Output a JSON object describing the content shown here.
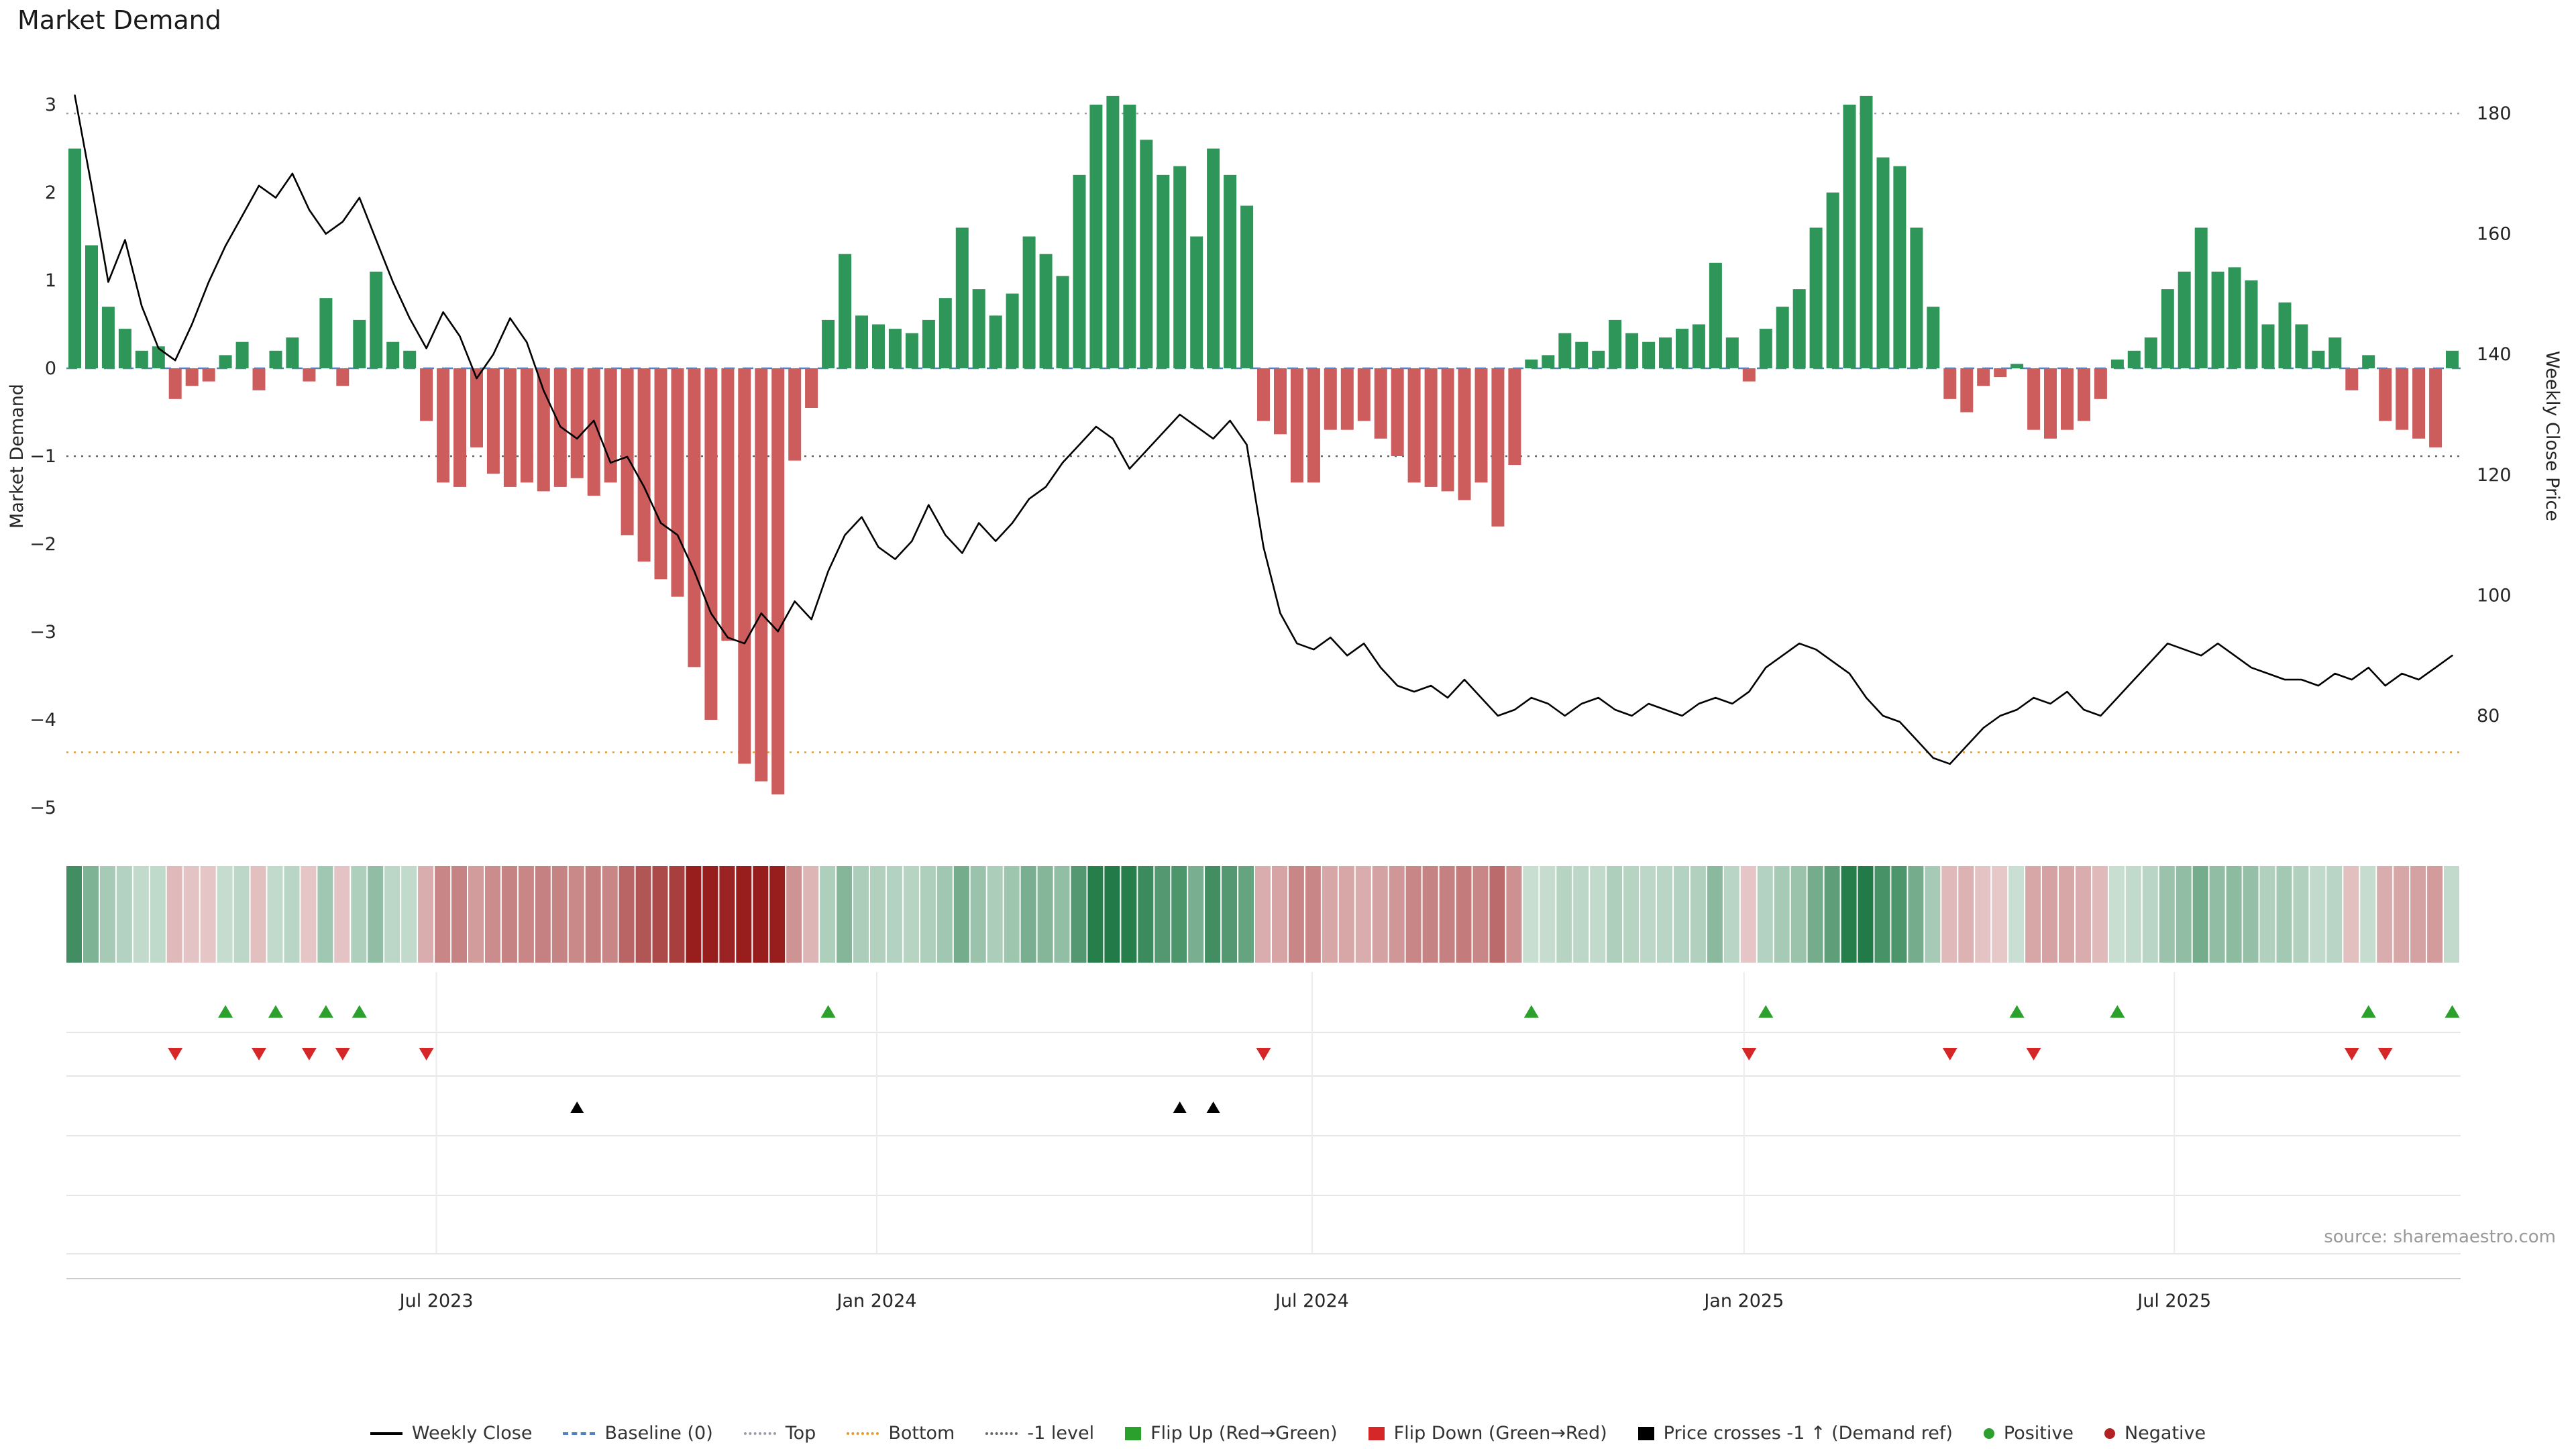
{
  "title": "Market Demand",
  "source_note": "source: sharemaestro.com",
  "axes": {
    "left_label": "Market Demand",
    "right_label": "Weekly Close Price",
    "left_ticks": [
      3,
      2,
      1,
      0,
      -1,
      -2,
      -3,
      -4,
      -5
    ],
    "right_ticks": [
      180,
      160,
      140,
      120,
      100,
      80
    ],
    "x_ticks": [
      {
        "label": "Jul 2023",
        "position": 21.6
      },
      {
        "label": "Jan 2024",
        "position": 47.9
      },
      {
        "label": "Jul 2024",
        "position": 73.9
      },
      {
        "label": "Jan 2025",
        "position": 99.7
      },
      {
        "label": "Jul 2025",
        "position": 125.4
      }
    ],
    "left_ylim": [
      -5.4,
      3.4
    ],
    "right_ylim": [
      62,
      186
    ]
  },
  "colors": {
    "positive_bar": "#2e9658",
    "negative_bar": "#cd5c5c",
    "price_line": "#000000",
    "baseline": "#4f81bd",
    "top_line": "#9999a8",
    "bottom_line": "#e0992c",
    "minus1_line": "#666666",
    "flip_up": "#2ca02c",
    "flip_down": "#d62728",
    "price_cross": "#000000",
    "positive_dot": "#2ca02c",
    "negative_dot": "#b22222",
    "heat_green": "#1b7742",
    "heat_red": "#981e1e",
    "tick_text": "#262626",
    "grid_line": "#e6e6e6",
    "axis_line": "#cccccc",
    "source_text": "#999999"
  },
  "chart_data": {
    "type": "bar+line",
    "x_unit": "week",
    "n_points": 143,
    "series": [
      {
        "name": "Market Demand",
        "type": "bar",
        "axis": "left",
        "values": [
          2.5,
          1.4,
          0.7,
          0.45,
          0.2,
          0.25,
          -0.35,
          -0.2,
          -0.15,
          0.15,
          0.3,
          -0.25,
          0.2,
          0.35,
          -0.15,
          0.8,
          -0.2,
          0.55,
          1.1,
          0.3,
          0.2,
          -0.6,
          -1.3,
          -1.35,
          -0.9,
          -1.2,
          -1.35,
          -1.3,
          -1.4,
          -1.35,
          -1.25,
          -1.45,
          -1.3,
          -1.9,
          -2.2,
          -2.4,
          -2.6,
          -3.4,
          -4.0,
          -3.1,
          -4.5,
          -4.7,
          -4.85,
          -1.05,
          -0.45,
          0.55,
          1.3,
          0.6,
          0.5,
          0.45,
          0.4,
          0.55,
          0.8,
          1.6,
          0.9,
          0.6,
          0.85,
          1.5,
          1.3,
          1.05,
          2.2,
          3.0,
          3.1,
          3.0,
          2.6,
          2.2,
          2.3,
          1.5,
          2.5,
          2.2,
          1.85,
          -0.6,
          -0.75,
          -1.3,
          -1.3,
          -0.7,
          -0.7,
          -0.6,
          -0.8,
          -1.0,
          -1.3,
          -1.35,
          -1.4,
          -1.5,
          -1.3,
          -1.8,
          -1.1,
          0.1,
          0.15,
          0.4,
          0.3,
          0.2,
          0.55,
          0.4,
          0.3,
          0.35,
          0.45,
          0.5,
          1.2,
          0.35,
          -0.15,
          0.45,
          0.7,
          0.9,
          1.6,
          2.0,
          3.0,
          3.1,
          2.4,
          2.3,
          1.6,
          0.7,
          -0.35,
          -0.5,
          -0.2,
          -0.1,
          0.05,
          -0.7,
          -0.8,
          -0.7,
          -0.6,
          -0.35,
          0.1,
          0.2,
          0.35,
          0.9,
          1.1,
          1.6,
          1.1,
          1.15,
          1.0,
          0.5,
          0.75,
          0.5,
          0.2,
          0.35,
          -0.25,
          0.15,
          -0.6,
          -0.7,
          -0.8,
          -0.9,
          0.2
        ]
      },
      {
        "name": "Weekly Close",
        "type": "line",
        "axis": "right",
        "values": [
          183,
          168,
          152,
          159,
          148,
          141,
          139,
          145,
          152,
          158,
          163,
          168,
          166,
          170,
          164,
          160,
          162,
          166,
          159,
          152,
          146,
          141,
          147,
          143,
          136,
          140,
          146,
          142,
          134,
          128,
          126,
          129,
          122,
          123,
          118,
          112,
          110,
          104,
          97,
          93,
          92,
          97,
          94,
          99,
          96,
          104,
          110,
          113,
          108,
          106,
          109,
          115,
          110,
          107,
          112,
          109,
          112,
          116,
          118,
          122,
          125,
          128,
          126,
          121,
          124,
          127,
          130,
          128,
          126,
          129,
          125,
          108,
          97,
          92,
          91,
          93,
          90,
          92,
          88,
          85,
          84,
          85,
          83,
          86,
          83,
          80,
          81,
          83,
          82,
          80,
          82,
          83,
          81,
          80,
          82,
          81,
          80,
          82,
          83,
          82,
          84,
          88,
          90,
          92,
          91,
          89,
          87,
          83,
          80,
          79,
          76,
          73,
          72,
          75,
          78,
          80,
          81,
          83,
          82,
          84,
          81,
          80,
          83,
          86,
          89,
          92,
          91,
          90,
          92,
          90,
          88,
          87,
          86,
          86,
          85,
          87,
          86,
          88,
          85,
          87,
          86,
          88,
          90
        ]
      }
    ],
    "reference_lines": [
      {
        "name": "Baseline (0)",
        "value": 0,
        "style": "dashed",
        "color_key": "baseline"
      },
      {
        "name": "Top",
        "value": 2.9,
        "style": "dotted",
        "color_key": "top_line"
      },
      {
        "name": "Bottom",
        "value": -4.37,
        "style": "dotted",
        "color_key": "bottom_line"
      },
      {
        "name": "-1 level",
        "value": -1,
        "style": "dotted",
        "color_key": "minus1_line"
      }
    ],
    "markers": {
      "flip_up_indices": [
        9,
        12,
        15,
        17,
        45,
        87,
        101,
        116,
        122,
        137,
        142
      ],
      "flip_down_indices": [
        6,
        11,
        14,
        16,
        21,
        71,
        100,
        112,
        117,
        136,
        138
      ],
      "price_cross_indices": [
        30,
        66,
        68
      ]
    }
  },
  "legend": [
    {
      "label": "Weekly Close",
      "icon": "solid-line-icon",
      "swatch": "line",
      "color_key": "price_line"
    },
    {
      "label": "Baseline (0)",
      "icon": "dashed-line-icon",
      "swatch": "dashed",
      "color_key": "baseline"
    },
    {
      "label": "Top",
      "icon": "dotted-line-icon",
      "swatch": "dotted",
      "color_key": "top_line"
    },
    {
      "label": "Bottom",
      "icon": "dotted-line-icon",
      "swatch": "dotted",
      "color_key": "bottom_line"
    },
    {
      "label": "-1 level",
      "icon": "dotted-line-icon",
      "swatch": "dotted",
      "color_key": "minus1_line"
    },
    {
      "label": "Flip Up (Red→Green)",
      "icon": "triangle-up-icon",
      "swatch": "tri-up",
      "color_key": "flip_up"
    },
    {
      "label": "Flip Down (Green→Red)",
      "icon": "triangle-down-icon",
      "swatch": "tri-down",
      "color_key": "flip_down"
    },
    {
      "label": "Price crosses -1 ↑ (Demand ref)",
      "icon": "triangle-up-icon",
      "swatch": "tri-up",
      "color_key": "price_cross"
    },
    {
      "label": "Positive",
      "icon": "dot-icon",
      "swatch": "dot",
      "color_key": "positive_dot"
    },
    {
      "label": "Negative",
      "icon": "dot-icon",
      "swatch": "dot",
      "color_key": "negative_dot"
    }
  ]
}
